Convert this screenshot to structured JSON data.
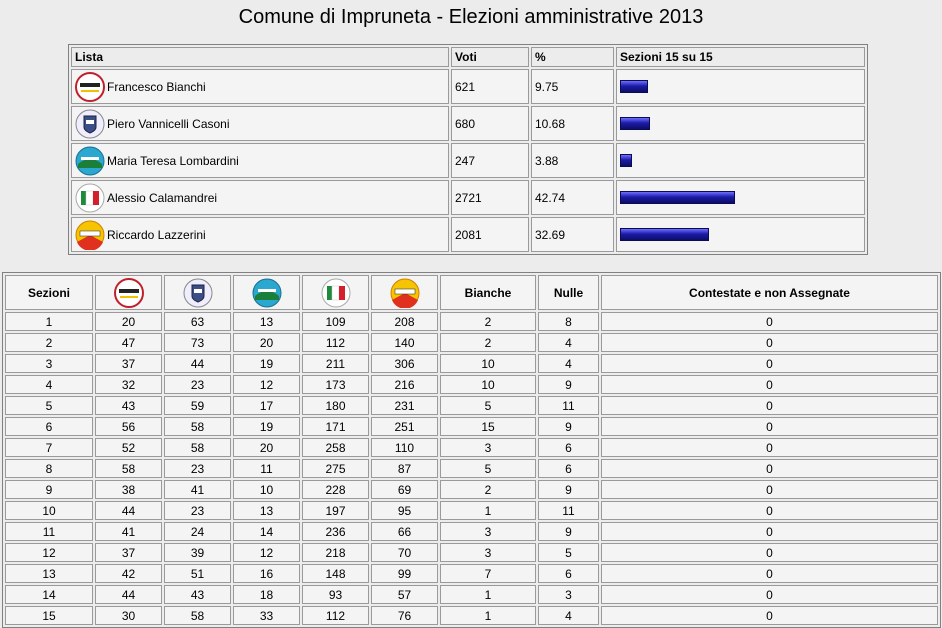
{
  "title": "Comune di Impruneta - Elezioni amministrative 2013",
  "summary": {
    "headers": {
      "lista": "Lista",
      "voti": "Voti",
      "pct": "%",
      "sezioni": "Sezioni 15 su 15"
    },
    "rows": [
      {
        "name": "Francesco Bianchi",
        "logo": "m5s-logo-icon",
        "voti": "621",
        "pct": "9.75",
        "share": 9.75
      },
      {
        "name": "Piero Vannicelli Casoni",
        "logo": "civic-list-logo-icon",
        "voti": "680",
        "pct": "10.68",
        "share": 10.68
      },
      {
        "name": "Maria Teresa Lombardini",
        "logo": "sel-logo-icon",
        "voti": "247",
        "pct": "3.88",
        "share": 3.88
      },
      {
        "name": "Alessio Calamandrei",
        "logo": "pd-logo-icon",
        "voti": "2721",
        "pct": "42.74",
        "share": 42.74
      },
      {
        "name": "Riccardo Lazzerini",
        "logo": "lazzerini-logo-icon",
        "voti": "2081",
        "pct": "32.69",
        "share": 32.69
      }
    ]
  },
  "detail": {
    "headers": {
      "sezioni": "Sezioni",
      "bianche": "Bianche",
      "nulle": "Nulle",
      "contestate": "Contestate e non Assegnate"
    },
    "logos": [
      "m5s-logo-icon",
      "civic-list-logo-icon",
      "sel-logo-icon",
      "pd-logo-icon",
      "lazzerini-logo-icon"
    ],
    "rows": [
      [
        "1",
        "20",
        "63",
        "13",
        "109",
        "208",
        "2",
        "8",
        "0"
      ],
      [
        "2",
        "47",
        "73",
        "20",
        "112",
        "140",
        "2",
        "4",
        "0"
      ],
      [
        "3",
        "37",
        "44",
        "19",
        "211",
        "306",
        "10",
        "4",
        "0"
      ],
      [
        "4",
        "32",
        "23",
        "12",
        "173",
        "216",
        "10",
        "9",
        "0"
      ],
      [
        "5",
        "43",
        "59",
        "17",
        "180",
        "231",
        "5",
        "11",
        "0"
      ],
      [
        "6",
        "56",
        "58",
        "19",
        "171",
        "251",
        "15",
        "9",
        "0"
      ],
      [
        "7",
        "52",
        "58",
        "20",
        "258",
        "110",
        "3",
        "6",
        "0"
      ],
      [
        "8",
        "58",
        "23",
        "11",
        "275",
        "87",
        "5",
        "6",
        "0"
      ],
      [
        "9",
        "38",
        "41",
        "10",
        "228",
        "69",
        "2",
        "9",
        "0"
      ],
      [
        "10",
        "44",
        "23",
        "13",
        "197",
        "95",
        "1",
        "11",
        "0"
      ],
      [
        "11",
        "41",
        "24",
        "14",
        "236",
        "66",
        "3",
        "9",
        "0"
      ],
      [
        "12",
        "37",
        "39",
        "12",
        "218",
        "70",
        "3",
        "5",
        "0"
      ],
      [
        "13",
        "42",
        "51",
        "16",
        "148",
        "99",
        "7",
        "6",
        "0"
      ],
      [
        "14",
        "44",
        "43",
        "18",
        "93",
        "57",
        "1",
        "3",
        "0"
      ],
      [
        "15",
        "30",
        "58",
        "33",
        "112",
        "76",
        "1",
        "4",
        "0"
      ]
    ]
  }
}
